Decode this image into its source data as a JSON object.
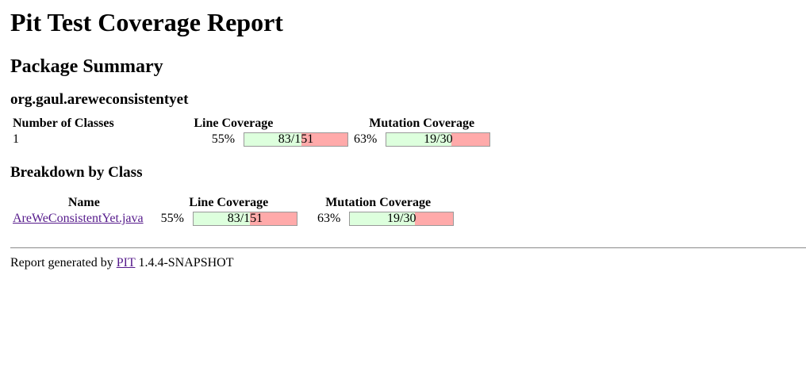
{
  "title": "Pit Test Coverage Report",
  "package_summary": {
    "heading": "Package Summary",
    "package_name": "org.gaul.areweconsistentyet",
    "headers": {
      "classes": "Number of Classes",
      "line": "Line Coverage",
      "mutation": "Mutation Coverage"
    },
    "row": {
      "classes": "1",
      "line_pct": "55%",
      "line_label": "83/151",
      "line_fraction": 0.55,
      "mutation_pct": "63%",
      "mutation_label": "19/30",
      "mutation_fraction": 0.63
    }
  },
  "breakdown": {
    "heading": "Breakdown by Class",
    "headers": {
      "name": "Name",
      "line": "Line Coverage",
      "mutation": "Mutation Coverage"
    },
    "rows": [
      {
        "name": "AreWeConsistentYet.java",
        "line_pct": "55%",
        "line_label": "83/151",
        "line_fraction": 0.55,
        "mutation_pct": "63%",
        "mutation_label": "19/30",
        "mutation_fraction": 0.63
      }
    ]
  },
  "footer": {
    "prefix": "Report generated by",
    "link": "PIT",
    "version": "1.4.4-SNAPSHOT"
  },
  "colors": {
    "covered": "#ddffdd",
    "uncovered": "#ffaaaa",
    "link": "#551a8b"
  }
}
